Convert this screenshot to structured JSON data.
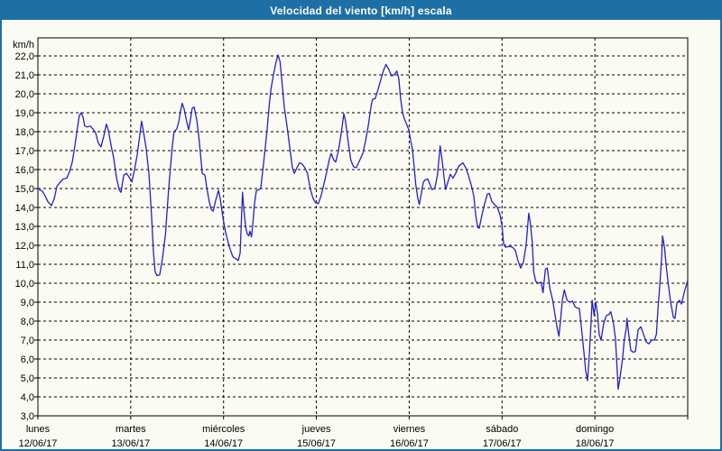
{
  "window": {
    "title": "Velocidad del viento [km/h] escala"
  },
  "colors": {
    "titlebar_bg": "#1E6FA5",
    "titlebar_text": "#FFFFFF",
    "window_bg": "#FBFBF3",
    "window_border": "#1E6FA5",
    "line": "#2222C8",
    "grid": "#000000",
    "axis_text": "#000000"
  },
  "chart_data": {
    "type": "line",
    "title": "Velocidad del viento [km/h] escala",
    "ylabel": "km/h",
    "ylim": [
      3,
      22
    ],
    "y_tick_step": 1,
    "y_tick_labels": [
      "22,0",
      "21,0",
      "20,0",
      "19,0",
      "18,0",
      "17,0",
      "16,0",
      "15,0",
      "14,0",
      "13,0",
      "12,0",
      "11,0",
      "10,0",
      "9,0",
      "8,0",
      "7,0",
      "6,0",
      "5,0",
      "4,0",
      "3,0"
    ],
    "x_range_hours": [
      0,
      168
    ],
    "grid": "dashed-black",
    "legend_position": "none",
    "x_axis_days": [
      {
        "label": "lunes",
        "date": "12/06/17"
      },
      {
        "label": "martes",
        "date": "13/06/17"
      },
      {
        "label": "miércoles",
        "date": "14/06/17"
      },
      {
        "label": "jueves",
        "date": "15/06/17"
      },
      {
        "label": "viernes",
        "date": "16/06/17"
      },
      {
        "label": "sábado",
        "date": "17/06/17"
      },
      {
        "label": "domingo",
        "date": "18/06/17"
      }
    ],
    "series": [
      {
        "name": "Velocidad del viento",
        "unit": "km/h",
        "points_hours_kmh": [
          [
            0,
            15.0
          ],
          [
            1.2,
            14.85
          ],
          [
            1.9,
            14.6
          ],
          [
            2.6,
            14.3
          ],
          [
            3.5,
            14.1
          ],
          [
            4.2,
            14.45
          ],
          [
            4.9,
            15.1
          ],
          [
            5.6,
            15.3
          ],
          [
            6.5,
            15.5
          ],
          [
            7.5,
            15.55
          ],
          [
            8.2,
            15.9
          ],
          [
            8.9,
            16.4
          ],
          [
            9.6,
            17.3
          ],
          [
            10.3,
            18.3
          ],
          [
            10.7,
            18.85
          ],
          [
            11.2,
            19.0
          ],
          [
            11.7,
            18.75
          ],
          [
            12.1,
            18.3
          ],
          [
            12.8,
            18.25
          ],
          [
            13.5,
            18.3
          ],
          [
            14.2,
            18.15
          ],
          [
            14.9,
            17.95
          ],
          [
            15.6,
            17.4
          ],
          [
            16.3,
            17.2
          ],
          [
            17.0,
            17.75
          ],
          [
            17.7,
            18.4
          ],
          [
            18.2,
            18.1
          ],
          [
            18.9,
            17.3
          ],
          [
            19.6,
            16.6
          ],
          [
            20.3,
            15.6
          ],
          [
            21.0,
            14.95
          ],
          [
            21.5,
            14.8
          ],
          [
            22.2,
            15.7
          ],
          [
            22.9,
            15.8
          ],
          [
            23.6,
            15.6
          ],
          [
            24.3,
            15.35
          ],
          [
            25.0,
            16.0
          ],
          [
            25.7,
            16.8
          ],
          [
            26.4,
            17.9
          ],
          [
            26.8,
            18.55
          ],
          [
            27.3,
            18.0
          ],
          [
            28.0,
            17.1
          ],
          [
            28.7,
            15.8
          ],
          [
            29.4,
            13.5
          ],
          [
            29.9,
            11.6
          ],
          [
            30.3,
            10.6
          ],
          [
            30.8,
            10.4
          ],
          [
            31.5,
            10.45
          ],
          [
            32.2,
            11.3
          ],
          [
            33.0,
            12.6
          ],
          [
            33.4,
            13.8
          ],
          [
            33.8,
            15.0
          ],
          [
            34.3,
            16.2
          ],
          [
            34.8,
            17.3
          ],
          [
            35.2,
            18.0
          ],
          [
            35.9,
            18.15
          ],
          [
            36.4,
            18.5
          ],
          [
            36.9,
            19.1
          ],
          [
            37.3,
            19.5
          ],
          [
            37.8,
            19.2
          ],
          [
            38.5,
            18.5
          ],
          [
            39.0,
            18.1
          ],
          [
            39.4,
            18.6
          ],
          [
            39.9,
            19.25
          ],
          [
            40.4,
            19.3
          ],
          [
            41.1,
            18.6
          ],
          [
            41.5,
            17.9
          ],
          [
            42.0,
            16.9
          ],
          [
            42.5,
            15.8
          ],
          [
            43.2,
            15.7
          ],
          [
            43.6,
            15.1
          ],
          [
            44.3,
            14.3
          ],
          [
            44.8,
            13.9
          ],
          [
            45.3,
            13.8
          ],
          [
            46.0,
            14.4
          ],
          [
            46.7,
            14.9
          ],
          [
            47.1,
            14.5
          ],
          [
            47.8,
            13.5
          ],
          [
            48.5,
            12.7
          ],
          [
            49.0,
            12.3
          ],
          [
            49.7,
            11.8
          ],
          [
            50.4,
            11.4
          ],
          [
            51.1,
            11.3
          ],
          [
            51.8,
            11.2
          ],
          [
            52.3,
            11.6
          ],
          [
            52.6,
            13.2
          ],
          [
            52.9,
            14.8
          ],
          [
            53.2,
            14.0
          ],
          [
            53.7,
            13.0
          ],
          [
            54.1,
            12.6
          ],
          [
            54.5,
            12.5
          ],
          [
            54.8,
            12.75
          ],
          [
            55.2,
            12.45
          ],
          [
            55.5,
            13.0
          ],
          [
            56.0,
            14.2
          ],
          [
            56.5,
            14.9
          ],
          [
            57.2,
            14.95
          ],
          [
            57.6,
            15.0
          ],
          [
            58.1,
            15.9
          ],
          [
            58.7,
            17.0
          ],
          [
            59.3,
            18.2
          ],
          [
            59.8,
            19.4
          ],
          [
            60.3,
            20.3
          ],
          [
            60.9,
            21.0
          ],
          [
            61.6,
            21.7
          ],
          [
            62.1,
            22.05
          ],
          [
            62.6,
            21.7
          ],
          [
            63.2,
            20.4
          ],
          [
            63.7,
            19.3
          ],
          [
            64.4,
            18.3
          ],
          [
            65.1,
            17.2
          ],
          [
            65.8,
            16.1
          ],
          [
            66.3,
            15.8
          ],
          [
            67.0,
            16.1
          ],
          [
            67.6,
            16.35
          ],
          [
            68.3,
            16.3
          ],
          [
            69.0,
            16.1
          ],
          [
            69.7,
            15.8
          ],
          [
            70.4,
            15.0
          ],
          [
            71.1,
            14.5
          ],
          [
            71.8,
            14.25
          ],
          [
            72.5,
            14.2
          ],
          [
            73.2,
            14.6
          ],
          [
            73.9,
            15.2
          ],
          [
            74.6,
            15.8
          ],
          [
            75.3,
            16.5
          ],
          [
            75.8,
            16.85
          ],
          [
            76.5,
            16.5
          ],
          [
            77.0,
            16.4
          ],
          [
            77.7,
            17.0
          ],
          [
            78.4,
            17.9
          ],
          [
            79.1,
            18.95
          ],
          [
            79.5,
            18.6
          ],
          [
            80.2,
            17.5
          ],
          [
            80.9,
            16.5
          ],
          [
            81.6,
            16.15
          ],
          [
            82.3,
            16.1
          ],
          [
            83.0,
            16.4
          ],
          [
            84.0,
            16.85
          ],
          [
            84.7,
            17.5
          ],
          [
            85.4,
            18.3
          ],
          [
            86.1,
            19.3
          ],
          [
            86.5,
            19.7
          ],
          [
            87.2,
            19.75
          ],
          [
            87.9,
            20.2
          ],
          [
            88.6,
            20.7
          ],
          [
            89.3,
            21.2
          ],
          [
            90.0,
            21.55
          ],
          [
            90.7,
            21.3
          ],
          [
            91.4,
            20.95
          ],
          [
            92.1,
            21.0
          ],
          [
            92.8,
            21.2
          ],
          [
            93.3,
            20.8
          ],
          [
            93.8,
            19.7
          ],
          [
            94.3,
            19.0
          ],
          [
            94.7,
            18.7
          ],
          [
            95.4,
            18.35
          ],
          [
            95.9,
            18.1
          ],
          [
            96.4,
            17.5
          ],
          [
            96.8,
            17.1
          ],
          [
            97.3,
            16.1
          ],
          [
            97.7,
            15.2
          ],
          [
            98.2,
            14.5
          ],
          [
            98.6,
            14.15
          ],
          [
            99.1,
            14.7
          ],
          [
            99.6,
            15.3
          ],
          [
            100.0,
            15.45
          ],
          [
            100.8,
            15.5
          ],
          [
            101.2,
            15.3
          ],
          [
            101.9,
            14.95
          ],
          [
            102.6,
            15.0
          ],
          [
            103.3,
            15.7
          ],
          [
            104.0,
            17.25
          ],
          [
            104.5,
            16.5
          ],
          [
            105.0,
            15.6
          ],
          [
            105.4,
            14.95
          ],
          [
            106.1,
            15.4
          ],
          [
            106.6,
            15.75
          ],
          [
            107.3,
            15.55
          ],
          [
            108.0,
            15.8
          ],
          [
            108.9,
            16.2
          ],
          [
            109.9,
            16.35
          ],
          [
            110.6,
            16.1
          ],
          [
            111.3,
            15.7
          ],
          [
            112.0,
            15.2
          ],
          [
            112.7,
            14.6
          ],
          [
            113.2,
            13.6
          ],
          [
            113.7,
            12.95
          ],
          [
            114.1,
            12.9
          ],
          [
            114.8,
            13.6
          ],
          [
            115.5,
            14.2
          ],
          [
            116.2,
            14.7
          ],
          [
            116.7,
            14.75
          ],
          [
            117.4,
            14.3
          ],
          [
            118.1,
            14.15
          ],
          [
            118.8,
            14.0
          ],
          [
            119.5,
            13.6
          ],
          [
            120.0,
            13.0
          ],
          [
            120.4,
            12.1
          ],
          [
            120.9,
            11.9
          ],
          [
            121.8,
            11.95
          ],
          [
            122.7,
            11.9
          ],
          [
            123.4,
            11.75
          ],
          [
            124.1,
            11.2
          ],
          [
            124.8,
            10.8
          ],
          [
            125.5,
            11.1
          ],
          [
            126.2,
            12.0
          ],
          [
            126.9,
            13.7
          ],
          [
            127.3,
            13.2
          ],
          [
            127.8,
            12.2
          ],
          [
            128.2,
            10.6
          ],
          [
            128.7,
            10.1
          ],
          [
            129.4,
            10.0
          ],
          [
            130.1,
            10.05
          ],
          [
            130.6,
            9.5
          ],
          [
            131.2,
            10.75
          ],
          [
            131.7,
            10.8
          ],
          [
            132.4,
            9.7
          ],
          [
            133.1,
            9.1
          ],
          [
            133.8,
            8.2
          ],
          [
            134.2,
            7.7
          ],
          [
            134.7,
            7.2
          ],
          [
            135.1,
            8.0
          ],
          [
            135.6,
            9.1
          ],
          [
            136.1,
            9.65
          ],
          [
            136.8,
            9.1
          ],
          [
            137.5,
            9.0
          ],
          [
            138.2,
            9.05
          ],
          [
            138.9,
            8.75
          ],
          [
            140.0,
            8.65
          ],
          [
            140.7,
            7.3
          ],
          [
            141.2,
            6.3
          ],
          [
            141.6,
            5.4
          ],
          [
            142.1,
            4.85
          ],
          [
            142.5,
            6.0
          ],
          [
            143.0,
            7.9
          ],
          [
            143.3,
            9.1
          ],
          [
            143.8,
            8.3
          ],
          [
            144.2,
            9.0
          ],
          [
            144.7,
            8.4
          ],
          [
            145.1,
            7.3
          ],
          [
            145.6,
            7.0
          ],
          [
            146.3,
            7.9
          ],
          [
            147.0,
            8.3
          ],
          [
            147.7,
            8.35
          ],
          [
            148.1,
            8.5
          ],
          [
            148.8,
            7.9
          ],
          [
            149.3,
            7.1
          ],
          [
            149.8,
            5.3
          ],
          [
            150.0,
            4.4
          ],
          [
            150.5,
            5.0
          ],
          [
            151.2,
            6.1
          ],
          [
            151.6,
            7.0
          ],
          [
            152.1,
            7.6
          ],
          [
            152.3,
            8.15
          ],
          [
            152.8,
            7.2
          ],
          [
            153.3,
            6.45
          ],
          [
            154.0,
            6.35
          ],
          [
            154.5,
            6.4
          ],
          [
            155.2,
            7.55
          ],
          [
            155.9,
            7.7
          ],
          [
            156.6,
            7.3
          ],
          [
            157.3,
            6.9
          ],
          [
            158.0,
            6.8
          ],
          [
            158.7,
            7.0
          ],
          [
            159.4,
            7.0
          ],
          [
            159.9,
            7.3
          ],
          [
            160.3,
            8.6
          ],
          [
            160.8,
            9.9
          ],
          [
            161.3,
            11.5
          ],
          [
            161.5,
            12.5
          ],
          [
            162.0,
            11.9
          ],
          [
            162.4,
            11.0
          ],
          [
            162.9,
            10.1
          ],
          [
            163.6,
            9.0
          ],
          [
            164.3,
            8.2
          ],
          [
            164.7,
            8.15
          ],
          [
            165.2,
            8.95
          ],
          [
            165.9,
            9.1
          ],
          [
            166.4,
            8.9
          ],
          [
            167.1,
            9.5
          ],
          [
            167.5,
            9.8
          ],
          [
            168.0,
            10.15
          ]
        ]
      }
    ]
  }
}
